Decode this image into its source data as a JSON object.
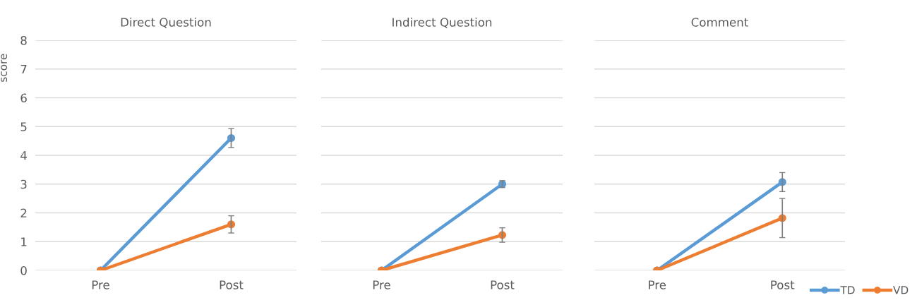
{
  "chart_data": [
    {
      "type": "line",
      "title": "Direct Question",
      "ylabel": "score",
      "categories": [
        "Pre",
        "Post"
      ],
      "ylim": [
        0,
        8
      ],
      "yticks": [
        0,
        1,
        2,
        3,
        4,
        5,
        6,
        7,
        8
      ],
      "grid": "y",
      "marker": "circle",
      "line_style": "solid",
      "series": [
        {
          "color": "#5b9bd5",
          "values": [
            0,
            4.6
          ],
          "errors": [
            null,
            0.33
          ]
        },
        {
          "color": "#ed7d31",
          "values": [
            0,
            1.6
          ],
          "errors": [
            null,
            0.3
          ]
        }
      ]
    },
    {
      "type": "line",
      "title": "Indirect Question",
      "categories": [
        "Pre",
        "Post"
      ],
      "ylim": [
        0,
        8
      ],
      "yticks": [
        0,
        1,
        2,
        3,
        4,
        5,
        6,
        7,
        8
      ],
      "grid": "y",
      "marker": "circle",
      "line_style": "solid",
      "tick_labels": "x",
      "series": [
        {
          "color": "#5b9bd5",
          "values": [
            0,
            3.0
          ],
          "errors": [
            null,
            0.12
          ]
        },
        {
          "color": "#ed7d31",
          "values": [
            0,
            1.23
          ],
          "errors": [
            null,
            0.25
          ]
        }
      ]
    },
    {
      "type": "line",
      "title": "Comment",
      "categories": [
        "Pre",
        "Post"
      ],
      "ylim": [
        0,
        8
      ],
      "yticks": [
        0,
        1,
        2,
        3,
        4,
        5,
        6,
        7,
        8
      ],
      "grid": "y",
      "marker": "circle",
      "line_style": "solid",
      "tick_labels": "x",
      "legend": "bottom right",
      "series": [
        {
          "name": "TD",
          "color": "#5b9bd5",
          "values": [
            0,
            3.07
          ],
          "errors": [
            null,
            0.33
          ]
        },
        {
          "name": "VD",
          "color": "#ed7d31",
          "values": [
            0,
            1.82
          ],
          "errors": [
            null,
            0.68
          ]
        }
      ]
    }
  ]
}
